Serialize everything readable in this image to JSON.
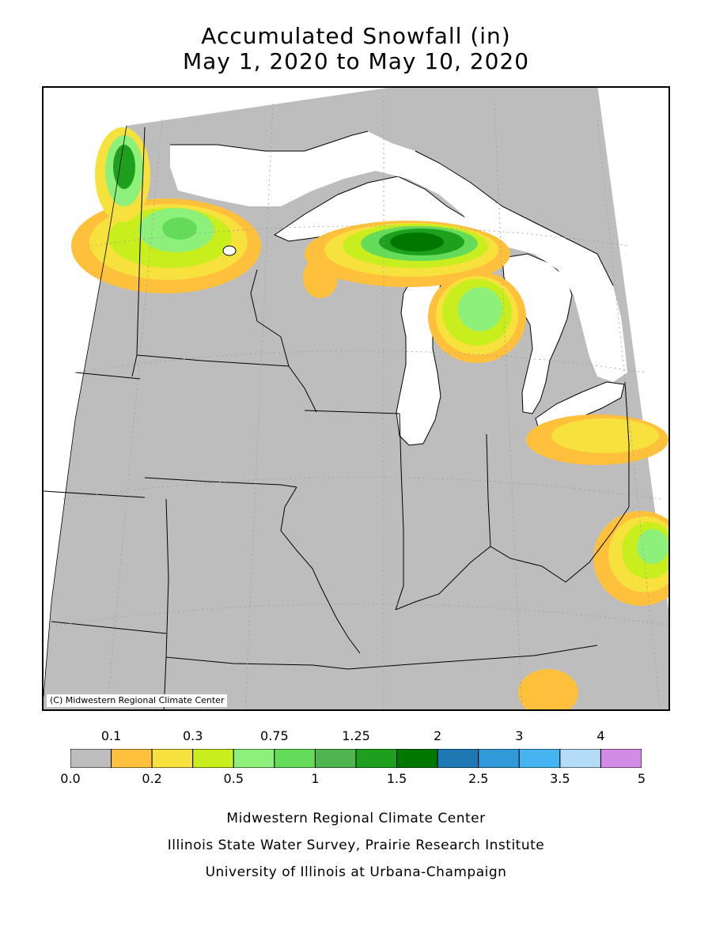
{
  "title": {
    "line1": "Accumulated Snowfall (in)",
    "line2": "May 1, 2020 to May 10, 2020"
  },
  "map": {
    "copyright": "(C) Midwestern Regional Climate Center",
    "background_color": "#bdbdbd",
    "water_color": "#ffffff"
  },
  "legend": {
    "bins": [
      {
        "from": 0.0,
        "to": 0.1,
        "color": "#bdbdbd"
      },
      {
        "from": 0.1,
        "to": 0.2,
        "color": "#ffc03c"
      },
      {
        "from": 0.2,
        "to": 0.3,
        "color": "#f7e13c"
      },
      {
        "from": 0.3,
        "to": 0.5,
        "color": "#c8ee1e"
      },
      {
        "from": 0.5,
        "to": 0.75,
        "color": "#8cf07a"
      },
      {
        "from": 0.75,
        "to": 1,
        "color": "#64dc5a"
      },
      {
        "from": 1,
        "to": 1.25,
        "color": "#50b450"
      },
      {
        "from": 1.25,
        "to": 1.5,
        "color": "#1ea01e"
      },
      {
        "from": 1.5,
        "to": 2,
        "color": "#007800"
      },
      {
        "from": 2,
        "to": 2.5,
        "color": "#1e78b4"
      },
      {
        "from": 2.5,
        "to": 3,
        "color": "#329ad8"
      },
      {
        "from": 3,
        "to": 3.5,
        "color": "#46b4f0"
      },
      {
        "from": 3.5,
        "to": 4,
        "color": "#b4dcf8"
      },
      {
        "from": 4,
        "to": 5,
        "color": "#d28ce6"
      }
    ],
    "top_labels": [
      "0.1",
      "0.3",
      "0.75",
      "1.25",
      "2",
      "3",
      "4"
    ],
    "bottom_labels": [
      "0.0",
      "0.2",
      "0.5",
      "1",
      "1.5",
      "2.5",
      "3.5",
      "5"
    ]
  },
  "footer": {
    "line1": "Midwestern Regional Climate Center",
    "line2": "Illinois State Water Survey, Prairie Research Institute",
    "line3": "University of Illinois at Urbana-Champaign"
  }
}
